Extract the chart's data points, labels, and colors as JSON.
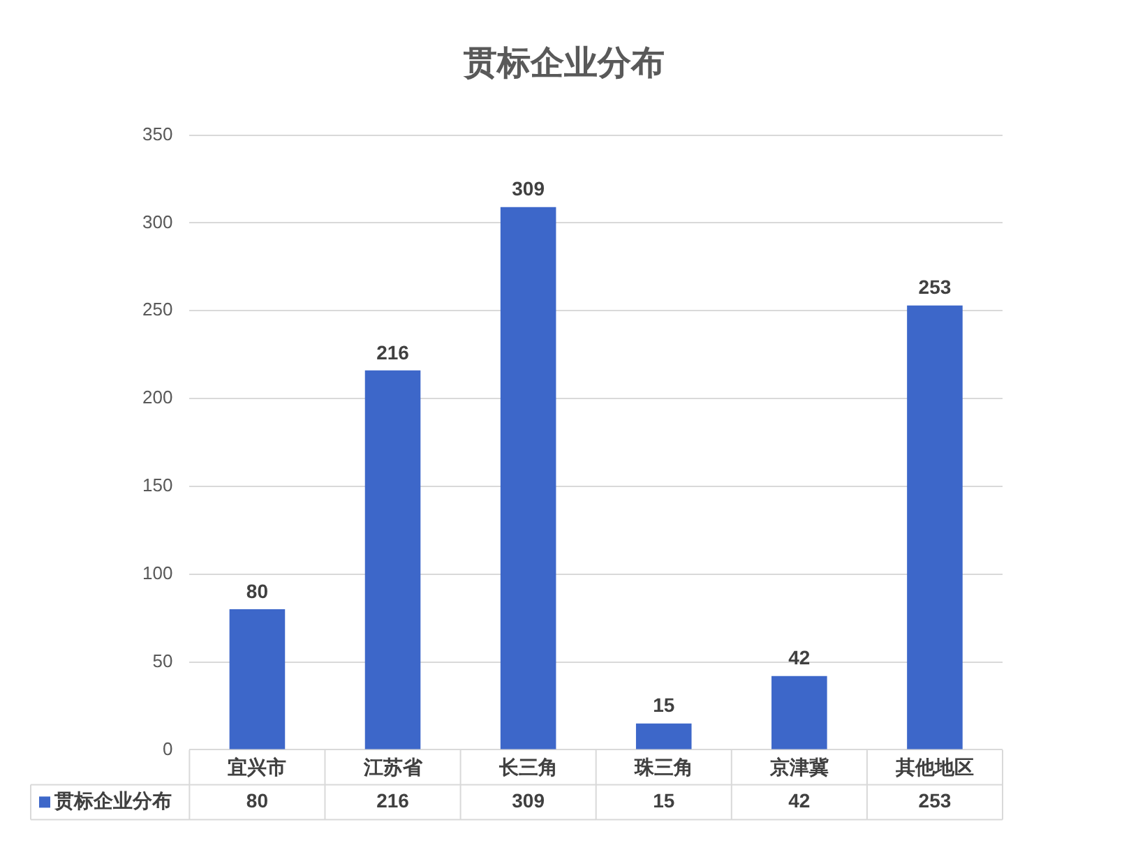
{
  "chart_data": {
    "type": "bar",
    "title": "贯标企业分布",
    "categories": [
      "宜兴市",
      "江苏省",
      "长三角",
      "珠三角",
      "京津冀",
      "其他地区"
    ],
    "series": [
      {
        "name": "贯标企业分布",
        "color": "#3d67c9",
        "values": [
          80,
          216,
          309,
          15,
          42,
          253
        ]
      }
    ],
    "annotations": [
      "80",
      "216",
      "309",
      "15",
      "42",
      "253"
    ],
    "ylim": [
      0,
      350
    ],
    "yticks": [
      0,
      50,
      100,
      150,
      200,
      250,
      300,
      350
    ],
    "grid": "y",
    "legend": "bottom left",
    "data_labels": true
  }
}
